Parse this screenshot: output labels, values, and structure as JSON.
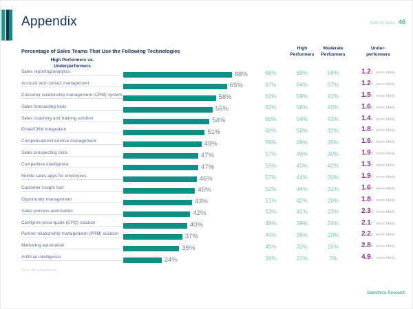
{
  "page": {
    "title": "Appendix",
    "brand": "State of Sales",
    "page_number": "46",
    "footnote": "Base: All respondents",
    "footer": "Salesforce Research"
  },
  "chart": {
    "title": "Percentage of Sales Teams That Use the Following Technologies",
    "columns": [
      {
        "line1": "High",
        "line2": "Performers"
      },
      {
        "line1": "Moderate",
        "line2": "Performers"
      },
      {
        "line1": "Under-",
        "line2": "performers"
      },
      {
        "line1": "High Performers vs.",
        "line2": "Underperformers"
      }
    ]
  },
  "chart_data": {
    "type": "bar",
    "orientation": "horizontal",
    "title": "Percentage of Sales Teams That Use the Following Technologies",
    "xlim": [
      0,
      100
    ],
    "bar_color": "#0E8E84",
    "categories": [
      "Sales reporting/analytics",
      "Account and contact management",
      "Customer relationship management (CRM) system",
      "Sales forecasting tools",
      "Sales coaching and training solution",
      "Email/CRM integration",
      "Compensation/incentive management",
      "Sales prospecting tools",
      "Competitive intelligence",
      "Mobile sales apps for employees",
      "Customer insight tool",
      "Opportunity management",
      "Sales process automation",
      "Configure-price-quote (CPQ) solution",
      "Partner relationship management (PRM) solution",
      "Marketing automation",
      "Artificial intelligence"
    ],
    "values": [
      68,
      65,
      58,
      56,
      54,
      51,
      49,
      47,
      47,
      46,
      45,
      43,
      42,
      40,
      37,
      35,
      24
    ],
    "series": [
      {
        "name": "High Performers",
        "values": [
          68,
          67,
          62,
          62,
          60,
          60,
          56,
          57,
          55,
          57,
          52,
          51,
          53,
          49,
          44,
          45,
          36
        ]
      },
      {
        "name": "Moderate Performers",
        "values": [
          69,
          64,
          59,
          56,
          54,
          50,
          48,
          46,
          45,
          44,
          44,
          42,
          41,
          39,
          36,
          33,
          21
        ]
      },
      {
        "name": "Under-performers",
        "values": [
          58,
          57,
          42,
          40,
          43,
          32,
          35,
          30,
          42,
          30,
          31,
          29,
          23,
          24,
          20,
          16,
          7
        ]
      }
    ],
    "comparison": {
      "name": "High Performers vs. Underperformers",
      "values": [
        "1.2",
        "1.2",
        "1.5",
        "1.6",
        "1.4",
        "1.8",
        "1.6",
        "1.9",
        "1.3",
        "1.9",
        "1.6",
        "1.8",
        "2.3",
        "2.1",
        "2.2",
        "2.8",
        "4.9"
      ],
      "x": "x",
      "suffix": "more likely"
    }
  }
}
